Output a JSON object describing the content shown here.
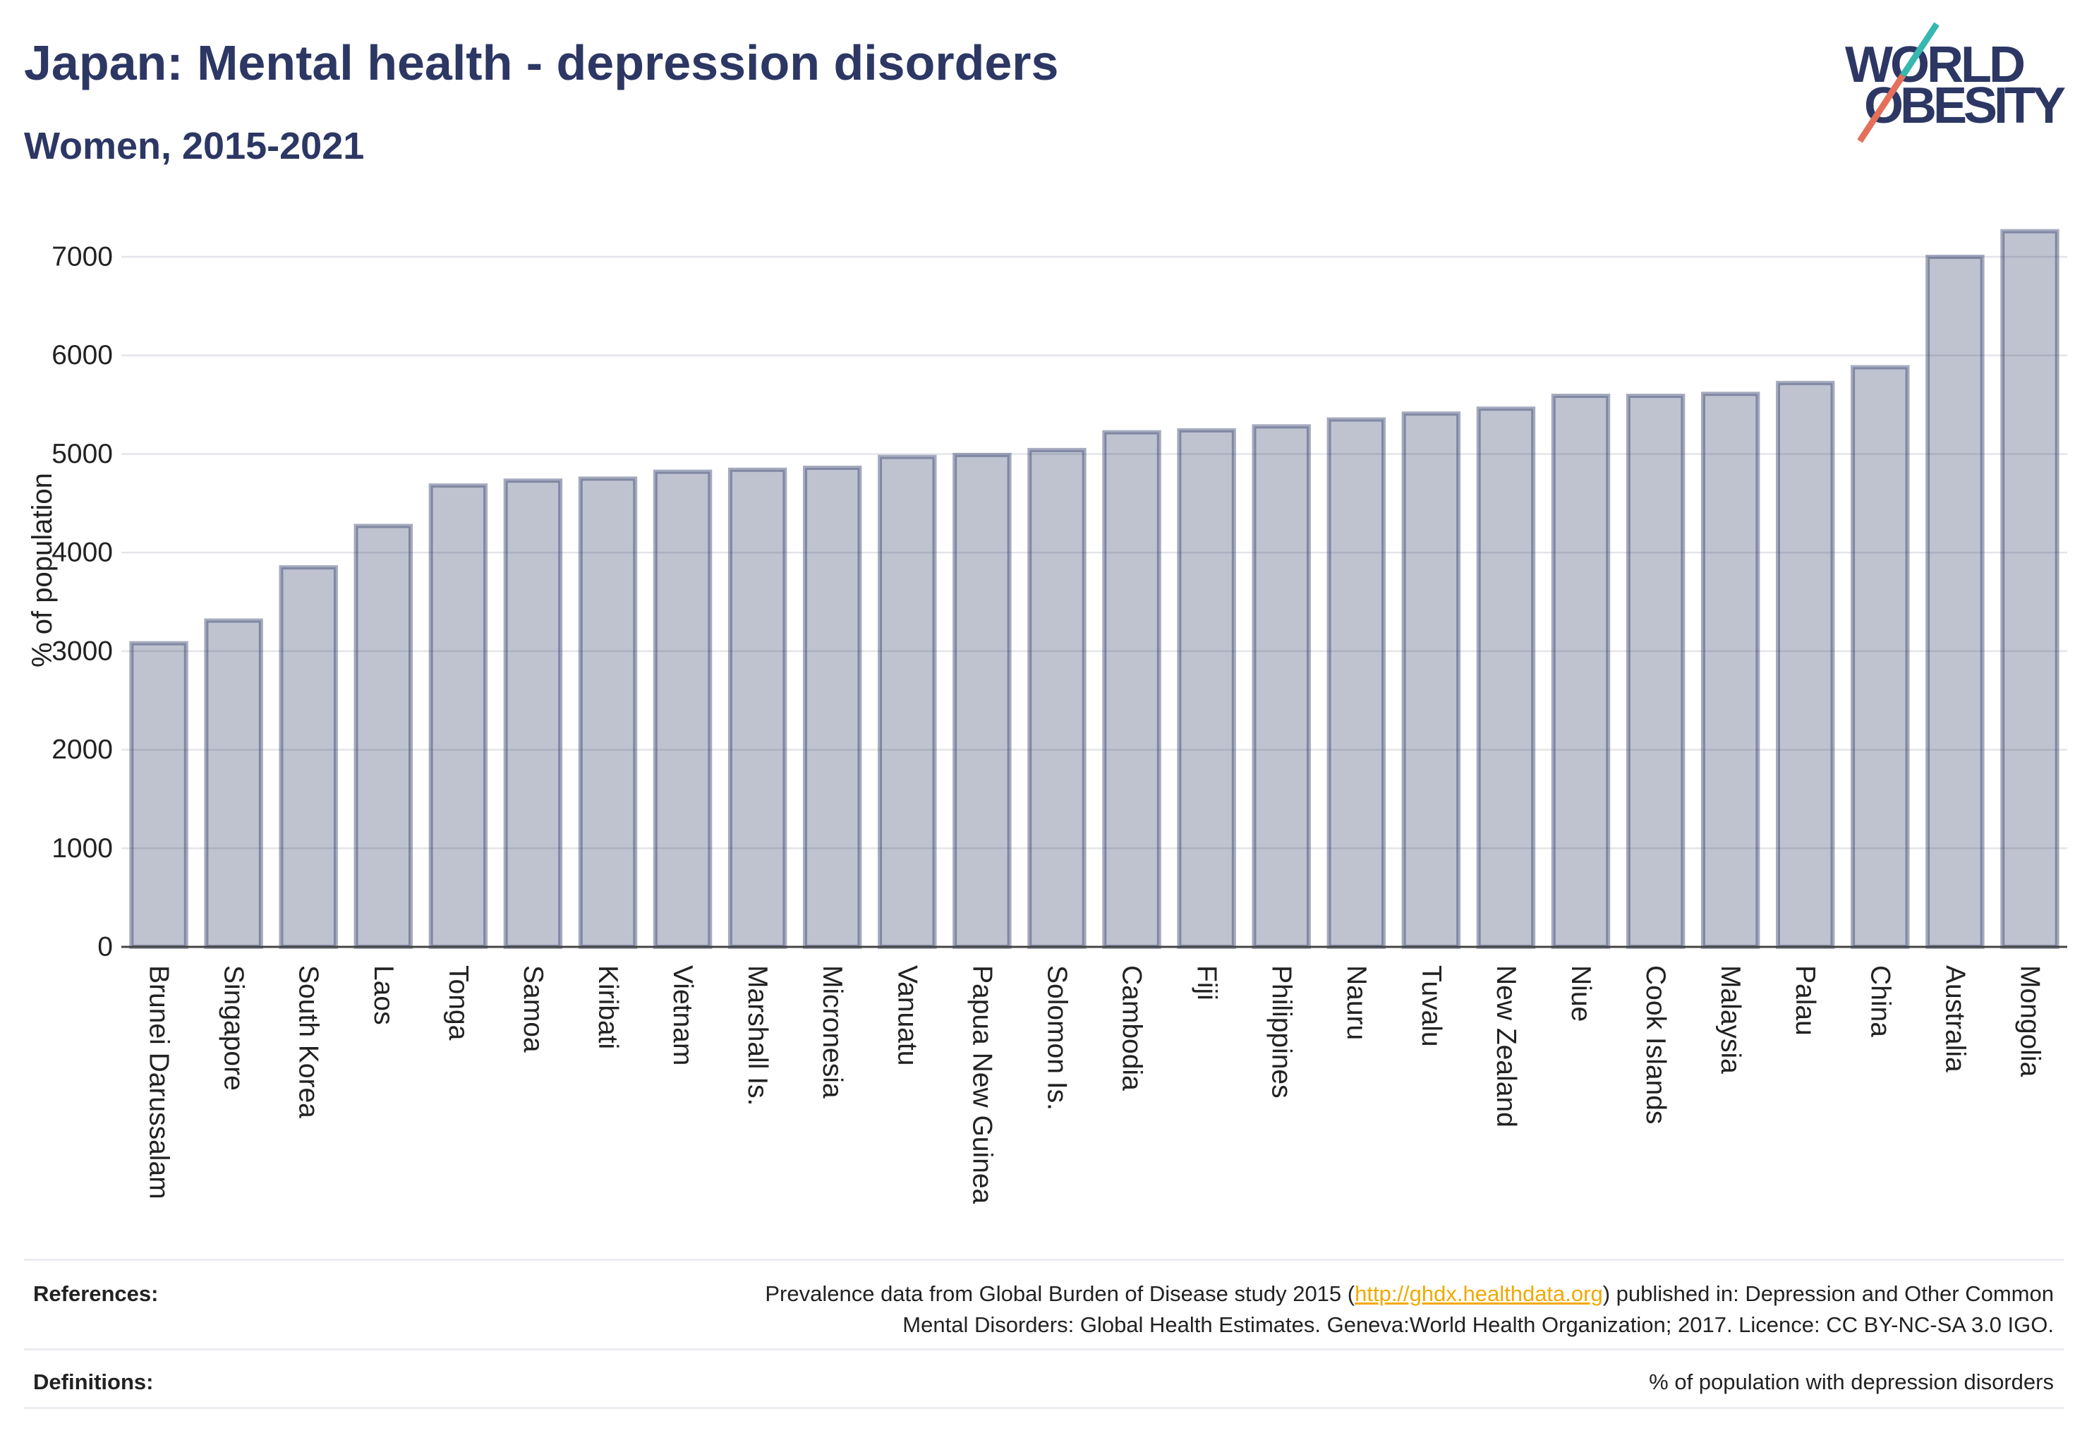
{
  "colors": {
    "title": "#2c3764",
    "bar": "#2c3764",
    "link": "#f2a900",
    "logo_teal": "#36b8b0",
    "logo_coral": "#e4705c"
  },
  "logo": {
    "line1": "WORLD",
    "line2": "OBESITY"
  },
  "chart_data": {
    "type": "bar",
    "title": "Japan: Mental health - depression disorders",
    "subtitle": "Women, 2015-2021",
    "ylabel": "% of population",
    "categories": [
      "Brunei Darussalam",
      "Singapore",
      "South Korea",
      "Laos",
      "Tonga",
      "Samoa",
      "Kiribati",
      "Vietnam",
      "Marshall Is.",
      "Micronesia",
      "Vanuatu",
      "Papua New Guinea",
      "Solomon Is.",
      "Cambodia",
      "Fiji",
      "Philippines",
      "Nauru",
      "Tuvalu",
      "New Zealand",
      "Niue",
      "Cook Islands",
      "Malaysia",
      "Palau",
      "China",
      "Australia",
      "Mongolia"
    ],
    "values": [
      3080,
      3310,
      3850,
      4270,
      4680,
      4730,
      4750,
      4820,
      4840,
      4860,
      4970,
      4990,
      5040,
      5220,
      5240,
      5280,
      5350,
      5410,
      5460,
      5590,
      5590,
      5610,
      5720,
      5880,
      7000,
      7260
    ],
    "ylim": [
      0,
      7630
    ],
    "yticks": [
      0,
      1000,
      2000,
      3000,
      4000,
      5000,
      6000,
      7000
    ],
    "grid": true
  },
  "footer": {
    "references_label": "References:",
    "references_line1_start": "Prevalence data from Global Burden of Disease study 2015 (",
    "references_link": "http://ghdx.healthdata.org",
    "references_line1_end": ") published in: Depression and Other Common",
    "references_line2": "Mental Disorders: Global Health Estimates. Geneva:World Health Organization; 2017. Licence: CC BY-NC-SA 3.0 IGO.",
    "definitions_label": "Definitions:",
    "definitions_text": "% of population with depression disorders"
  }
}
